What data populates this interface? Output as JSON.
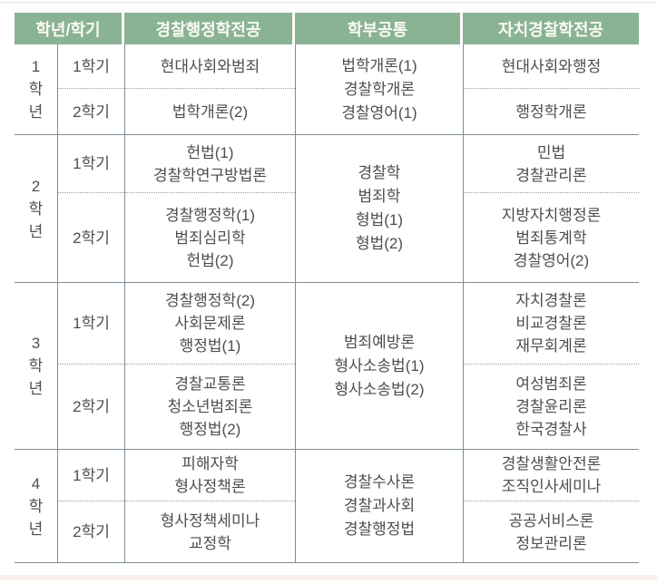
{
  "colors": {
    "header_bg": "#8ab394",
    "header_text": "#fafaf4",
    "grid_line": "#7d8e99",
    "dotted_line": "#9a9a9a",
    "body_text": "#4e4e4e"
  },
  "header": {
    "col_year_semester": "학년/학기",
    "col_police_admin_major": "경찰행정학전공",
    "col_department_common": "학부공통",
    "col_autonomous_police_major": "자치경찰학전공"
  },
  "years": [
    {
      "label": "1\n학\n년",
      "sem1": {
        "label": "1학기",
        "major1": "현대사회와범죄",
        "major2": "현대사회와행정"
      },
      "sem2": {
        "label": "2학기",
        "major1": "법학개론(2)",
        "major2": "행정학개론"
      },
      "common": "법학개론(1)\n경찰학개론\n경찰영어(1)"
    },
    {
      "label": "2\n학\n년",
      "sem1": {
        "label": "1학기",
        "major1": "헌법(1)\n경찰학연구방법론",
        "major2": "민법\n경찰관리론"
      },
      "sem2": {
        "label": "2학기",
        "major1": "경찰행정학(1)\n범죄심리학\n헌법(2)",
        "major2": "지방자치행정론\n범죄통계학\n경찰영어(2)"
      },
      "common": "경찰학\n범죄학\n형법(1)\n형법(2)"
    },
    {
      "label": "3\n학\n년",
      "sem1": {
        "label": "1학기",
        "major1": "경찰행정학(2)\n사회문제론\n행정법(1)",
        "major2": "자치경찰론\n비교경찰론\n재무회계론"
      },
      "sem2": {
        "label": "2학기",
        "major1": "경찰교통론\n청소년범죄론\n행정법(2)",
        "major2": "여성범죄론\n경찰윤리론\n한국경찰사"
      },
      "common": "범죄예방론\n형사소송법(1)\n형사소송법(2)"
    },
    {
      "label": "4\n학\n년",
      "sem1": {
        "label": "1학기",
        "major1": "피해자학\n형사정책론",
        "major2": "경찰생활안전론\n조직인사세미나"
      },
      "sem2": {
        "label": "2학기",
        "major1": "형사정책세미나\n교정학",
        "major2": "공공서비스론\n정보관리론"
      },
      "common": "경찰수사론\n경찰과사회\n경찰행정법"
    }
  ]
}
